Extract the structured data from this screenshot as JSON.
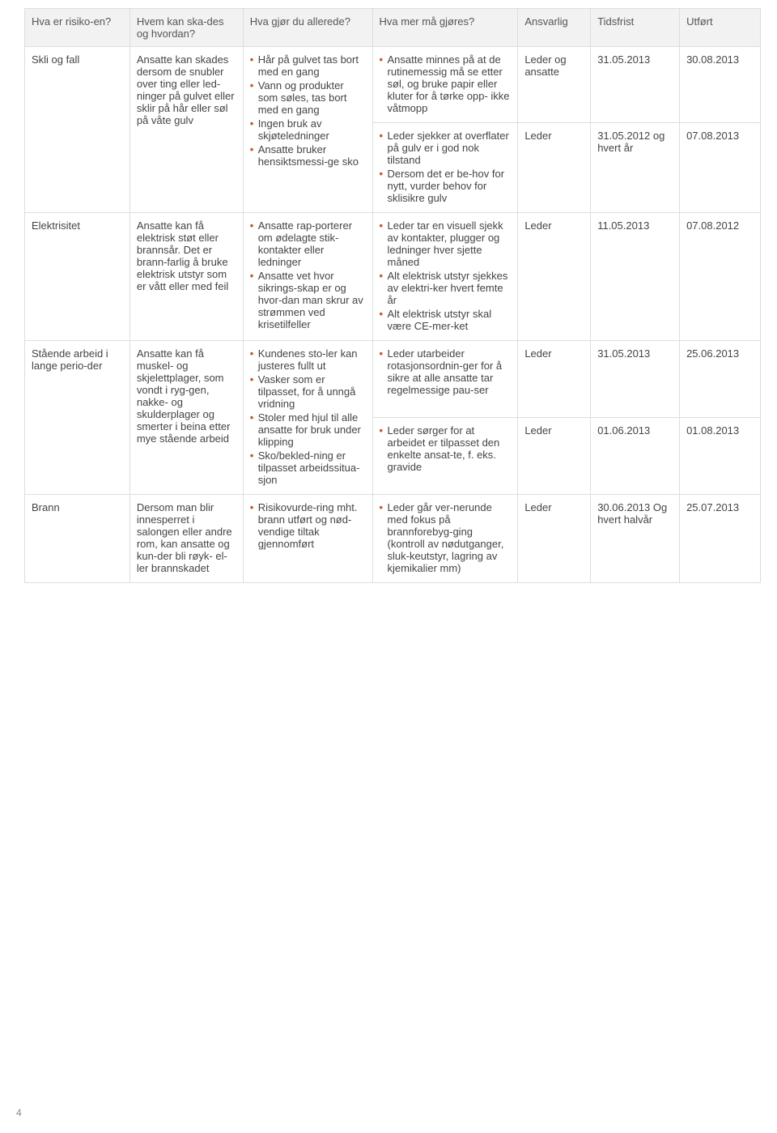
{
  "headers": {
    "risk": "Hva er risiko-en?",
    "who": "Hvem kan ska-des og hvordan?",
    "doing": "Hva gjør du allerede?",
    "more": "Hva mer må gjøres?",
    "responsible": "Ansvarlig",
    "deadline": "Tidsfrist",
    "done": "Utført"
  },
  "rows": [
    {
      "risk": "Skli og fall",
      "who": "Ansatte kan skades dersom de snubler over ting eller led-ninger på gulvet eller sklir på hår eller søl på våte gulv",
      "doing": [
        "Hår på gulvet tas bort med en gang",
        "Vann og produkter som søles, tas bort med en gang",
        "Ingen bruk av skjøteledninger",
        "Ansatte bruker hensiktsmessi-ge sko"
      ],
      "sub": [
        {
          "more": [
            "Ansatte minnes på at de rutinemessig må se etter søl, og bruke papir eller kluter for å tørke opp- ikke våtmopp"
          ],
          "resp": "Leder og ansatte",
          "deadline": "31.05.2013",
          "done": "30.08.2013"
        },
        {
          "more": [
            "Leder sjekker at overflater på gulv er i god nok tilstand",
            "Dersom det er be-hov for nytt, vurder behov for sklisikre gulv"
          ],
          "resp": "Leder",
          "deadline": "31.05.2012 og hvert år",
          "done": "07.08.2013"
        }
      ]
    },
    {
      "risk": "Elektrisitet",
      "who": "Ansatte kan få elektrisk støt eller brannsår. Det er brann-farlig å bruke elektrisk utstyr som er vått eller med feil",
      "doing": [
        "Ansatte rap-porterer om ødelagte stik-kontakter eller ledninger",
        "Ansatte vet hvor sikrings-skap er og hvor-dan man skrur av strømmen ved krisetilfeller"
      ],
      "sub": [
        {
          "more": [
            "Leder tar en visuell sjekk av kontakter, plugger og ledninger hver sjette måned",
            "Alt elektrisk utstyr sjekkes av elektri-ker hvert femte år",
            "Alt elektrisk utstyr skal være CE-mer-ket"
          ],
          "resp": "Leder",
          "deadline": "11.05.2013",
          "done": "07.08.2012"
        }
      ]
    },
    {
      "risk": "Stående arbeid i lange perio-der",
      "who": "Ansatte kan få muskel- og skjelettplager, som vondt i ryg-gen, nakke- og skulderplager og smerter i beina etter mye stående arbeid",
      "doing": [
        "Kundenes sto-ler kan justeres fullt ut",
        "Vasker som er tilpasset, for å unngå vridning",
        "Stoler med hjul til alle ansatte for bruk under klipping",
        "Sko/bekled-ning er tilpasset arbeidssitua-sjon"
      ],
      "sub": [
        {
          "more": [
            "Leder utarbeider rotasjonsordnin-ger for å sikre at alle ansatte tar regelmessige pau-ser"
          ],
          "resp": "Leder",
          "deadline": "31.05.2013",
          "done": "25.06.2013"
        },
        {
          "more": [
            "Leder sørger for at arbeidet er tilpasset den enkelte ansat-te, f. eks. gravide"
          ],
          "resp": "Leder",
          "deadline": "01.06.2013",
          "done": "01.08.2013"
        }
      ]
    },
    {
      "risk": "Brann",
      "who": "Dersom man blir innesperret i salongen eller andre rom, kan ansatte og kun-der bli røyk- el-ler brannskadet",
      "doing": [
        "Risikovurde-ring mht. brann utført og nød-vendige tiltak gjennomført"
      ],
      "sub": [
        {
          "more": [
            "Leder går ver-nerunde med fokus på brannforebyg-ging (kontroll av nødutganger, sluk-keutstyr, lagring av kjemikalier mm)"
          ],
          "resp": "Leder",
          "deadline": "30.06.2013 Og hvert halvår",
          "done": "25.07.2013"
        }
      ]
    }
  ],
  "pageNumber": "4",
  "bulletColor": "#c55a2b",
  "headerBg": "#f2f2f2",
  "borderColor": "#dddddd"
}
